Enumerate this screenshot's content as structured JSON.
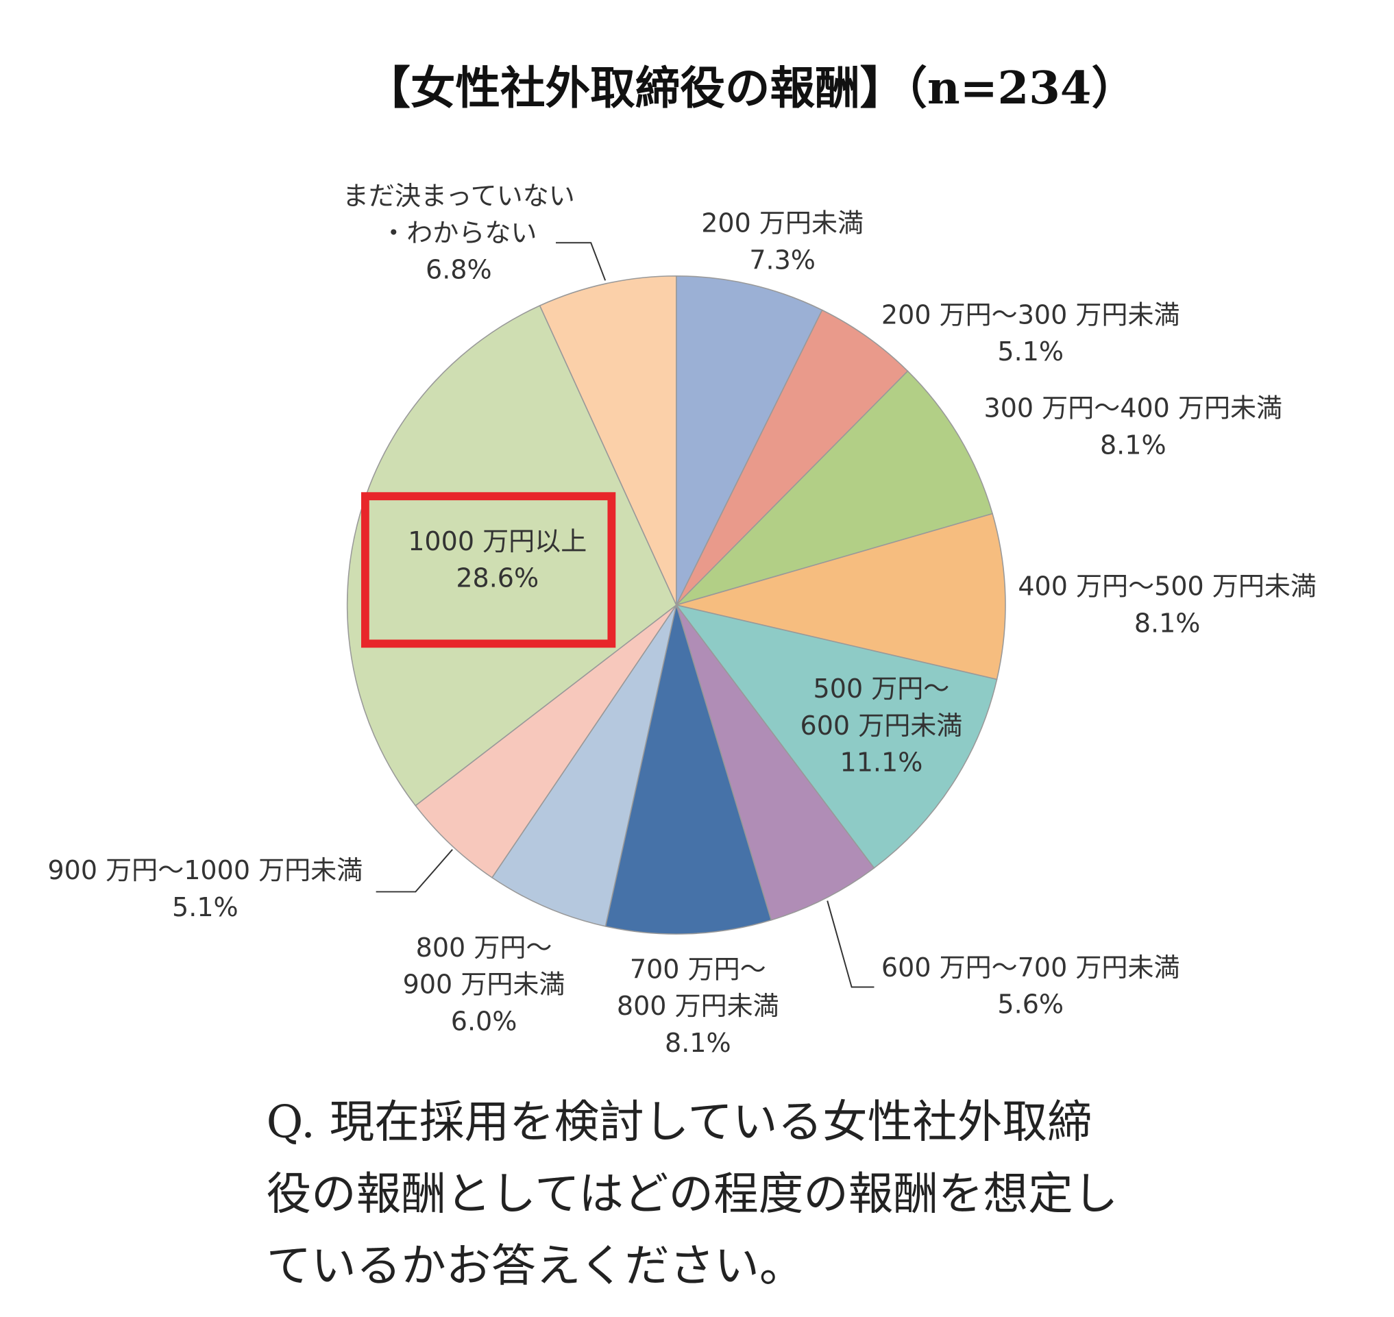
{
  "chart_data": {
    "type": "pie",
    "title": "【女性社外取締役の報酬】（n=234）",
    "unit": "%",
    "start": "top",
    "direction": "clockwise",
    "slices": [
      {
        "label": [
          "200 万円未満"
        ],
        "value": 7.3,
        "value_label": "7.3%",
        "color": "#9bb0d5"
      },
      {
        "label": [
          "200 万円〜300 万円未満"
        ],
        "value": 5.1,
        "value_label": "5.1%",
        "color": "#e99a8b"
      },
      {
        "label": [
          "300 万円〜400 万円未満"
        ],
        "value": 8.1,
        "value_label": "8.1%",
        "color": "#b2cf86"
      },
      {
        "label": [
          "400 万円〜500 万円未満"
        ],
        "value": 8.1,
        "value_label": "8.1%",
        "color": "#f6bd7f"
      },
      {
        "label": [
          "500 万円〜",
          "600 万円未満"
        ],
        "value": 11.1,
        "value_label": "11.1%",
        "color": "#8ecbc6"
      },
      {
        "label": [
          "600 万円〜700 万円未満"
        ],
        "value": 5.6,
        "value_label": "5.6%",
        "color": "#b08db6"
      },
      {
        "label": [
          "700 万円〜",
          "800 万円未満"
        ],
        "value": 8.1,
        "value_label": "8.1%",
        "color": "#4672a8"
      },
      {
        "label": [
          "800 万円〜",
          "900 万円未満"
        ],
        "value": 6.0,
        "value_label": "6.0%",
        "color": "#b5c8de"
      },
      {
        "label": [
          "900 万円〜1000 万円未満"
        ],
        "value": 5.1,
        "value_label": "5.1%",
        "color": "#f7c8bc"
      },
      {
        "label": [
          "1000 万円以上"
        ],
        "value": 28.6,
        "value_label": "28.6%",
        "color": "#cfdeb2",
        "highlighted": true
      },
      {
        "label": [
          "まだ決まっていない",
          "・わからない"
        ],
        "value": 6.8,
        "value_label": "6.8%",
        "color": "#fbd0a9"
      }
    ],
    "highlight_color": "#e8262a"
  },
  "question": [
    "Q.  現在採用を検討している女性社外取締",
    "役の報酬としてはどの程度の報酬を想定し",
    "ているかお答えください。"
  ]
}
